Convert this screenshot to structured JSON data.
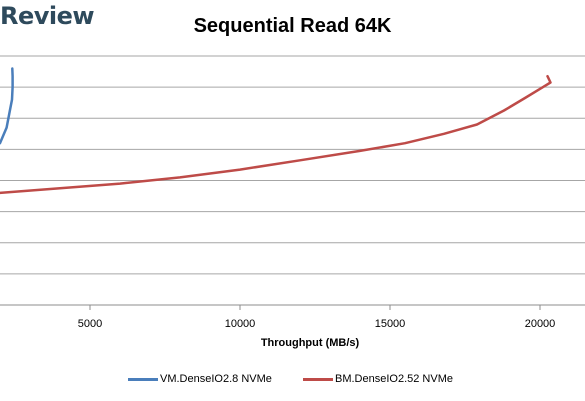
{
  "brand": "Review",
  "chart_data": {
    "type": "line",
    "title": "Sequential Read 64K",
    "xlabel": "Throughput (MB/s)",
    "ylabel": "",
    "xlim": [
      2000,
      21500
    ],
    "ylim": [
      0,
      8
    ],
    "x_ticks": [
      5000,
      10000,
      15000,
      20000
    ],
    "x_tick_labels": [
      "5000",
      "10000",
      "15000",
      "20000"
    ],
    "grid": "horizontal",
    "legend": "bottom",
    "series": [
      {
        "name": "VM.DenseIO2.8 NVMe",
        "color": "#4a7ebb",
        "points": [
          [
            2000,
            5.2
          ],
          [
            2220,
            5.7
          ],
          [
            2320,
            6.2
          ],
          [
            2400,
            6.6
          ],
          [
            2420,
            7.0
          ],
          [
            2420,
            7.35
          ],
          [
            2410,
            7.6
          ]
        ]
      },
      {
        "name": "BM.DenseIO2.52 NVMe",
        "color": "#be4b48",
        "points": [
          [
            2000,
            3.6
          ],
          [
            4000,
            3.75
          ],
          [
            6000,
            3.9
          ],
          [
            8000,
            4.1
          ],
          [
            10000,
            4.35
          ],
          [
            12000,
            4.65
          ],
          [
            14000,
            4.95
          ],
          [
            15500,
            5.2
          ],
          [
            16800,
            5.5
          ],
          [
            17900,
            5.8
          ],
          [
            18800,
            6.25
          ],
          [
            19500,
            6.65
          ],
          [
            20100,
            7.0
          ],
          [
            20350,
            7.15
          ],
          [
            20250,
            7.35
          ]
        ]
      }
    ]
  }
}
